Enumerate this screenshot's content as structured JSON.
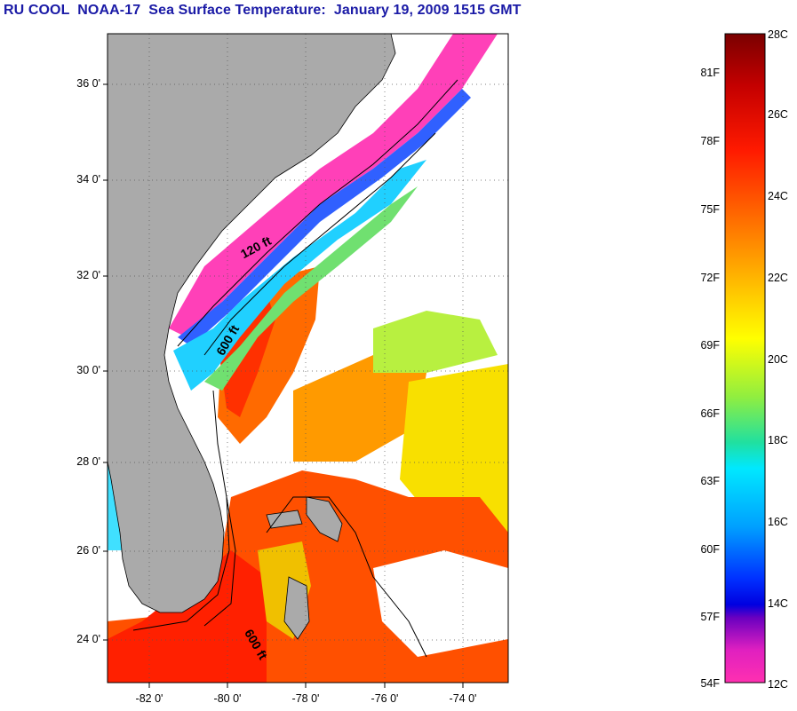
{
  "title": "RU COOL  NOAA-17  Sea Surface Temperature:  January 19, 2009 1515 GMT",
  "map": {
    "lat_ticks": [
      "36 0'",
      "34 0'",
      "32 0'",
      "30 0'",
      "28 0'",
      "26 0'",
      "24 0'"
    ],
    "lon_ticks": [
      "-82 0'",
      "-80 0'",
      "-78 0'",
      "-76 0'",
      "-74 0'"
    ],
    "contours": [
      "120 ft",
      "600 ft",
      "600 ft"
    ],
    "colors": {
      "land": "#aaaaaa",
      "cloud": "#ffffff",
      "coast": "#000000"
    }
  },
  "colorbar": {
    "fahrenheit": [
      "81F",
      "78F",
      "75F",
      "72F",
      "69F",
      "66F",
      "63F",
      "60F",
      "57F",
      "54F"
    ],
    "celsius": [
      "28C",
      "26C",
      "24C",
      "22C",
      "20C",
      "18C",
      "16C",
      "14C",
      "12C"
    ]
  }
}
